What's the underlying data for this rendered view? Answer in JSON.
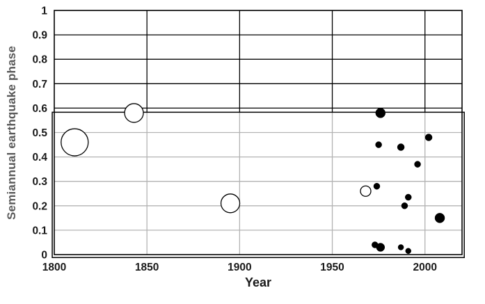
{
  "chart_data": {
    "type": "scatter",
    "xlabel": "Year",
    "ylabel": "Semiannual earthquake phase",
    "xlim": [
      1800,
      2020
    ],
    "ylim": [
      0,
      1
    ],
    "grid": "on",
    "legend": "none",
    "x_ticks": [
      {
        "v": 1800,
        "label": "1800"
      },
      {
        "v": 1850,
        "label": "1850"
      },
      {
        "v": 1900,
        "label": "1900"
      },
      {
        "v": 1950,
        "label": "1950"
      },
      {
        "v": 2000,
        "label": "2000"
      }
    ],
    "y_ticks": [
      {
        "v": 0,
        "label": "0"
      },
      {
        "v": 0.1,
        "label": "0.1"
      },
      {
        "v": 0.2,
        "label": "0.2"
      },
      {
        "v": 0.3,
        "label": "0.3"
      },
      {
        "v": 0.4,
        "label": "0.4"
      },
      {
        "v": 0.5,
        "label": "0.5"
      },
      {
        "v": 0.6,
        "label": "0.6"
      },
      {
        "v": 0.7,
        "label": "0.7"
      },
      {
        "v": 0.8,
        "label": "0.8"
      },
      {
        "v": 0.9,
        "label": "0.9"
      },
      {
        "v": 1,
        "label": "1"
      }
    ],
    "highlight_box": {
      "x0": 1798.9,
      "x1": 2021.2,
      "y0": -0.012,
      "y1": 0.583
    },
    "series": [
      {
        "name": "open-circle-events",
        "marker": "open-circle",
        "fill": "#ffffff",
        "stroke": "#000000",
        "points": [
          {
            "year": 1811,
            "phase": 0.46,
            "size": 39
          },
          {
            "year": 1843,
            "phase": 0.58,
            "size": 27
          },
          {
            "year": 1895,
            "phase": 0.21,
            "size": 27
          },
          {
            "year": 1968,
            "phase": 0.26,
            "size": 15
          }
        ]
      },
      {
        "name": "filled-circle-events",
        "marker": "filled-circle",
        "fill": "#000000",
        "stroke": "#000000",
        "points": [
          {
            "year": 1976,
            "phase": 0.58,
            "size": 14
          },
          {
            "year": 1975,
            "phase": 0.45,
            "size": 9
          },
          {
            "year": 1987,
            "phase": 0.44,
            "size": 10
          },
          {
            "year": 2002,
            "phase": 0.48,
            "size": 10
          },
          {
            "year": 1996,
            "phase": 0.37,
            "size": 9
          },
          {
            "year": 1974,
            "phase": 0.28,
            "size": 9
          },
          {
            "year": 1991,
            "phase": 0.235,
            "size": 9
          },
          {
            "year": 1989,
            "phase": 0.2,
            "size": 9
          },
          {
            "year": 2008,
            "phase": 0.15,
            "size": 14
          },
          {
            "year": 1973,
            "phase": 0.04,
            "size": 9
          },
          {
            "year": 1976,
            "phase": 0.03,
            "size": 12
          },
          {
            "year": 1987,
            "phase": 0.03,
            "size": 8
          },
          {
            "year": 1991,
            "phase": 0.015,
            "size": 8
          }
        ]
      }
    ],
    "colors": {
      "grid_upper": "#000000",
      "grid_lower": "#b3b3b3",
      "axis_border": "#000000",
      "box_border": "#000000",
      "tick_label": "#1a1a1a",
      "y_title": "#595959",
      "background": "#ffffff"
    }
  }
}
